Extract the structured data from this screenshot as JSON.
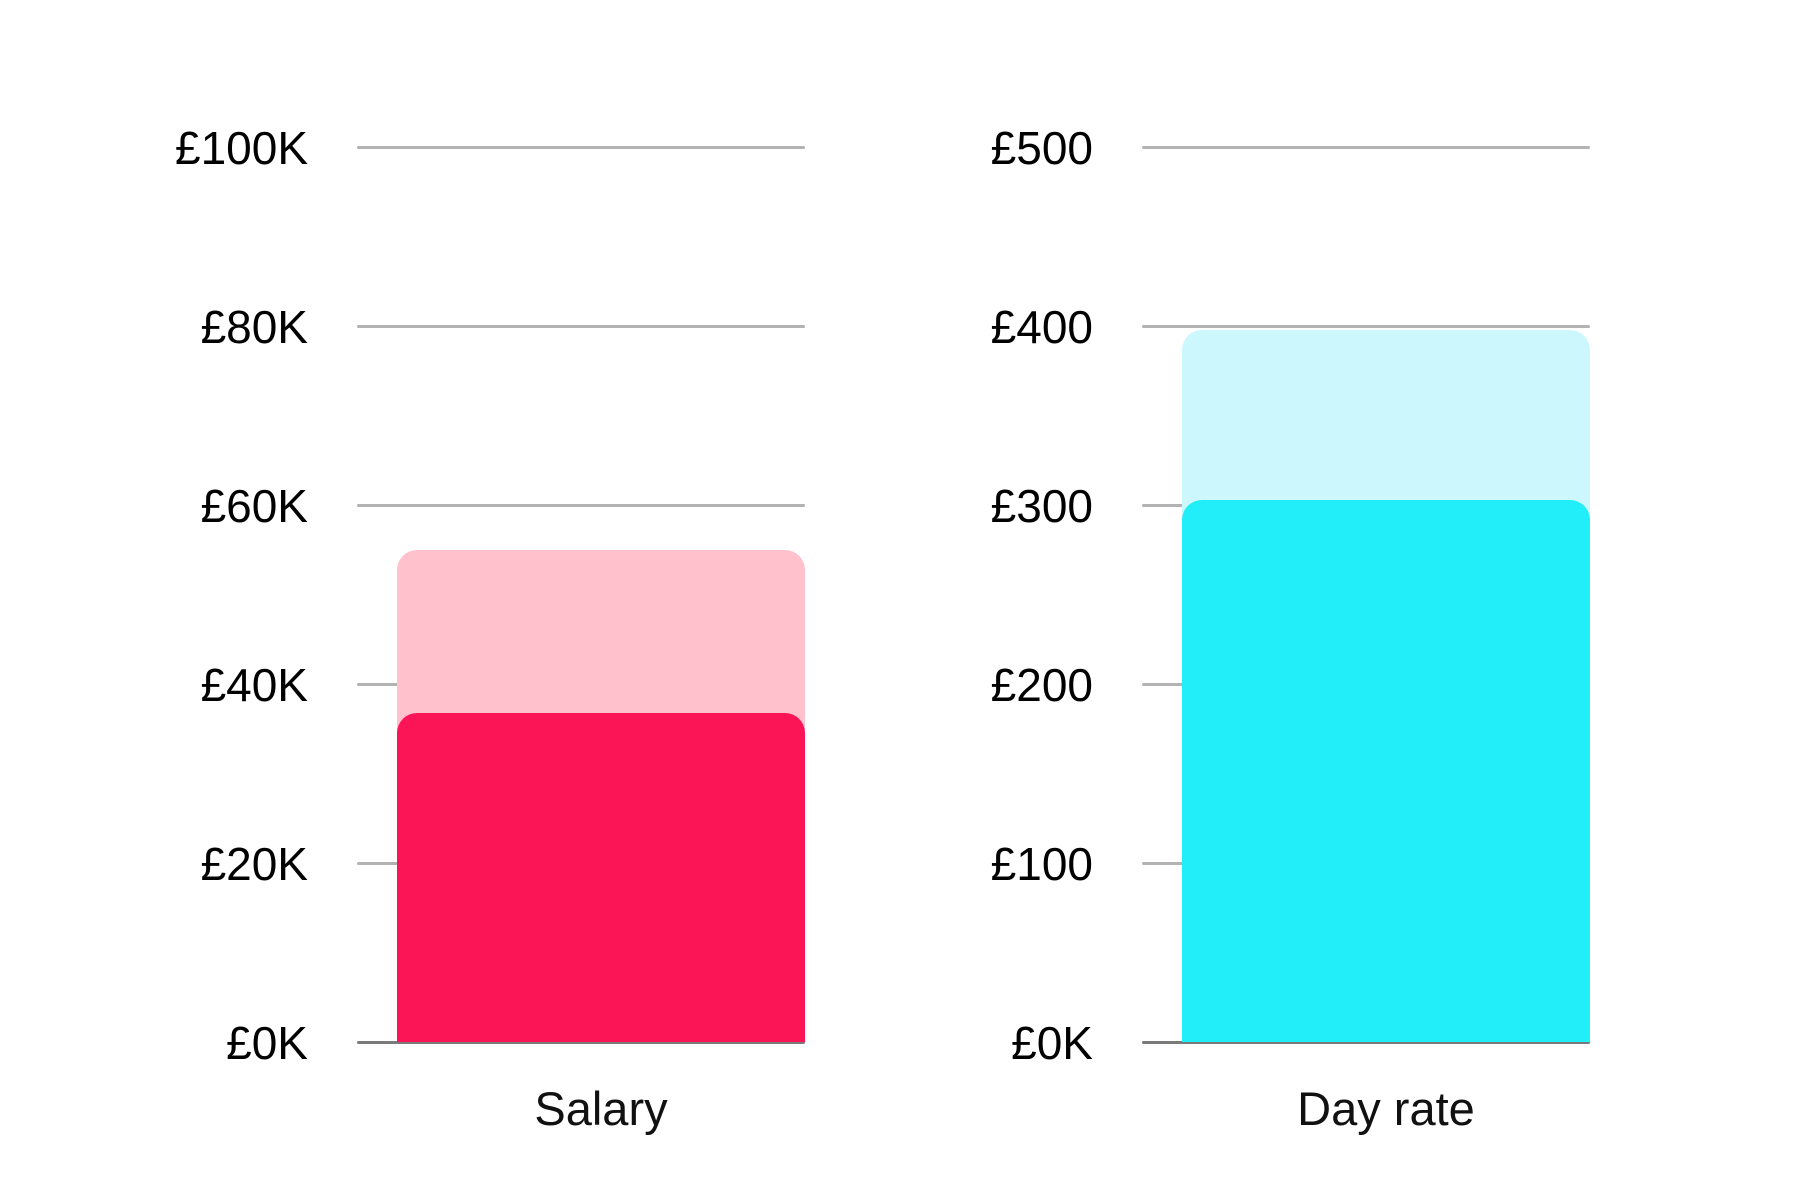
{
  "page": {
    "background": "#ffffff",
    "text_color": "#000000",
    "gridline_color": "#b3b3b3",
    "axis_line_color": "#7a7a7a"
  },
  "chart_data": [
    {
      "type": "bar",
      "title": "",
      "category": "Salary",
      "currency": "£",
      "ylim": [
        0,
        100000
      ],
      "grid": true,
      "legend": "none",
      "yticks": [
        {
          "value": 100000,
          "label": "£100K"
        },
        {
          "value": 80000,
          "label": "£80K"
        },
        {
          "value": 60000,
          "label": "£60K"
        },
        {
          "value": 40000,
          "label": "£40K"
        },
        {
          "value": 20000,
          "label": "£20K"
        },
        {
          "value": 0,
          "label": "£0K"
        }
      ],
      "series": [
        {
          "name": "back-bar",
          "value": 55000,
          "color": "#FFC2CD"
        },
        {
          "name": "front-bar",
          "value": 36800,
          "color": "#FB1556"
        }
      ]
    },
    {
      "type": "bar",
      "title": "",
      "category": "Day rate",
      "currency": "£",
      "ylim": [
        0,
        500
      ],
      "grid": true,
      "legend": "none",
      "yticks": [
        {
          "value": 500,
          "label": "£500"
        },
        {
          "value": 400,
          "label": "£400"
        },
        {
          "value": 300,
          "label": "£300"
        },
        {
          "value": 200,
          "label": "£200"
        },
        {
          "value": 100,
          "label": "£100"
        },
        {
          "value": 0,
          "label": "£0K"
        }
      ],
      "series": [
        {
          "name": "back-bar",
          "value": 398,
          "color": "#CCF8FD"
        },
        {
          "name": "front-bar",
          "value": 303,
          "color": "#21EEF9"
        }
      ]
    }
  ]
}
